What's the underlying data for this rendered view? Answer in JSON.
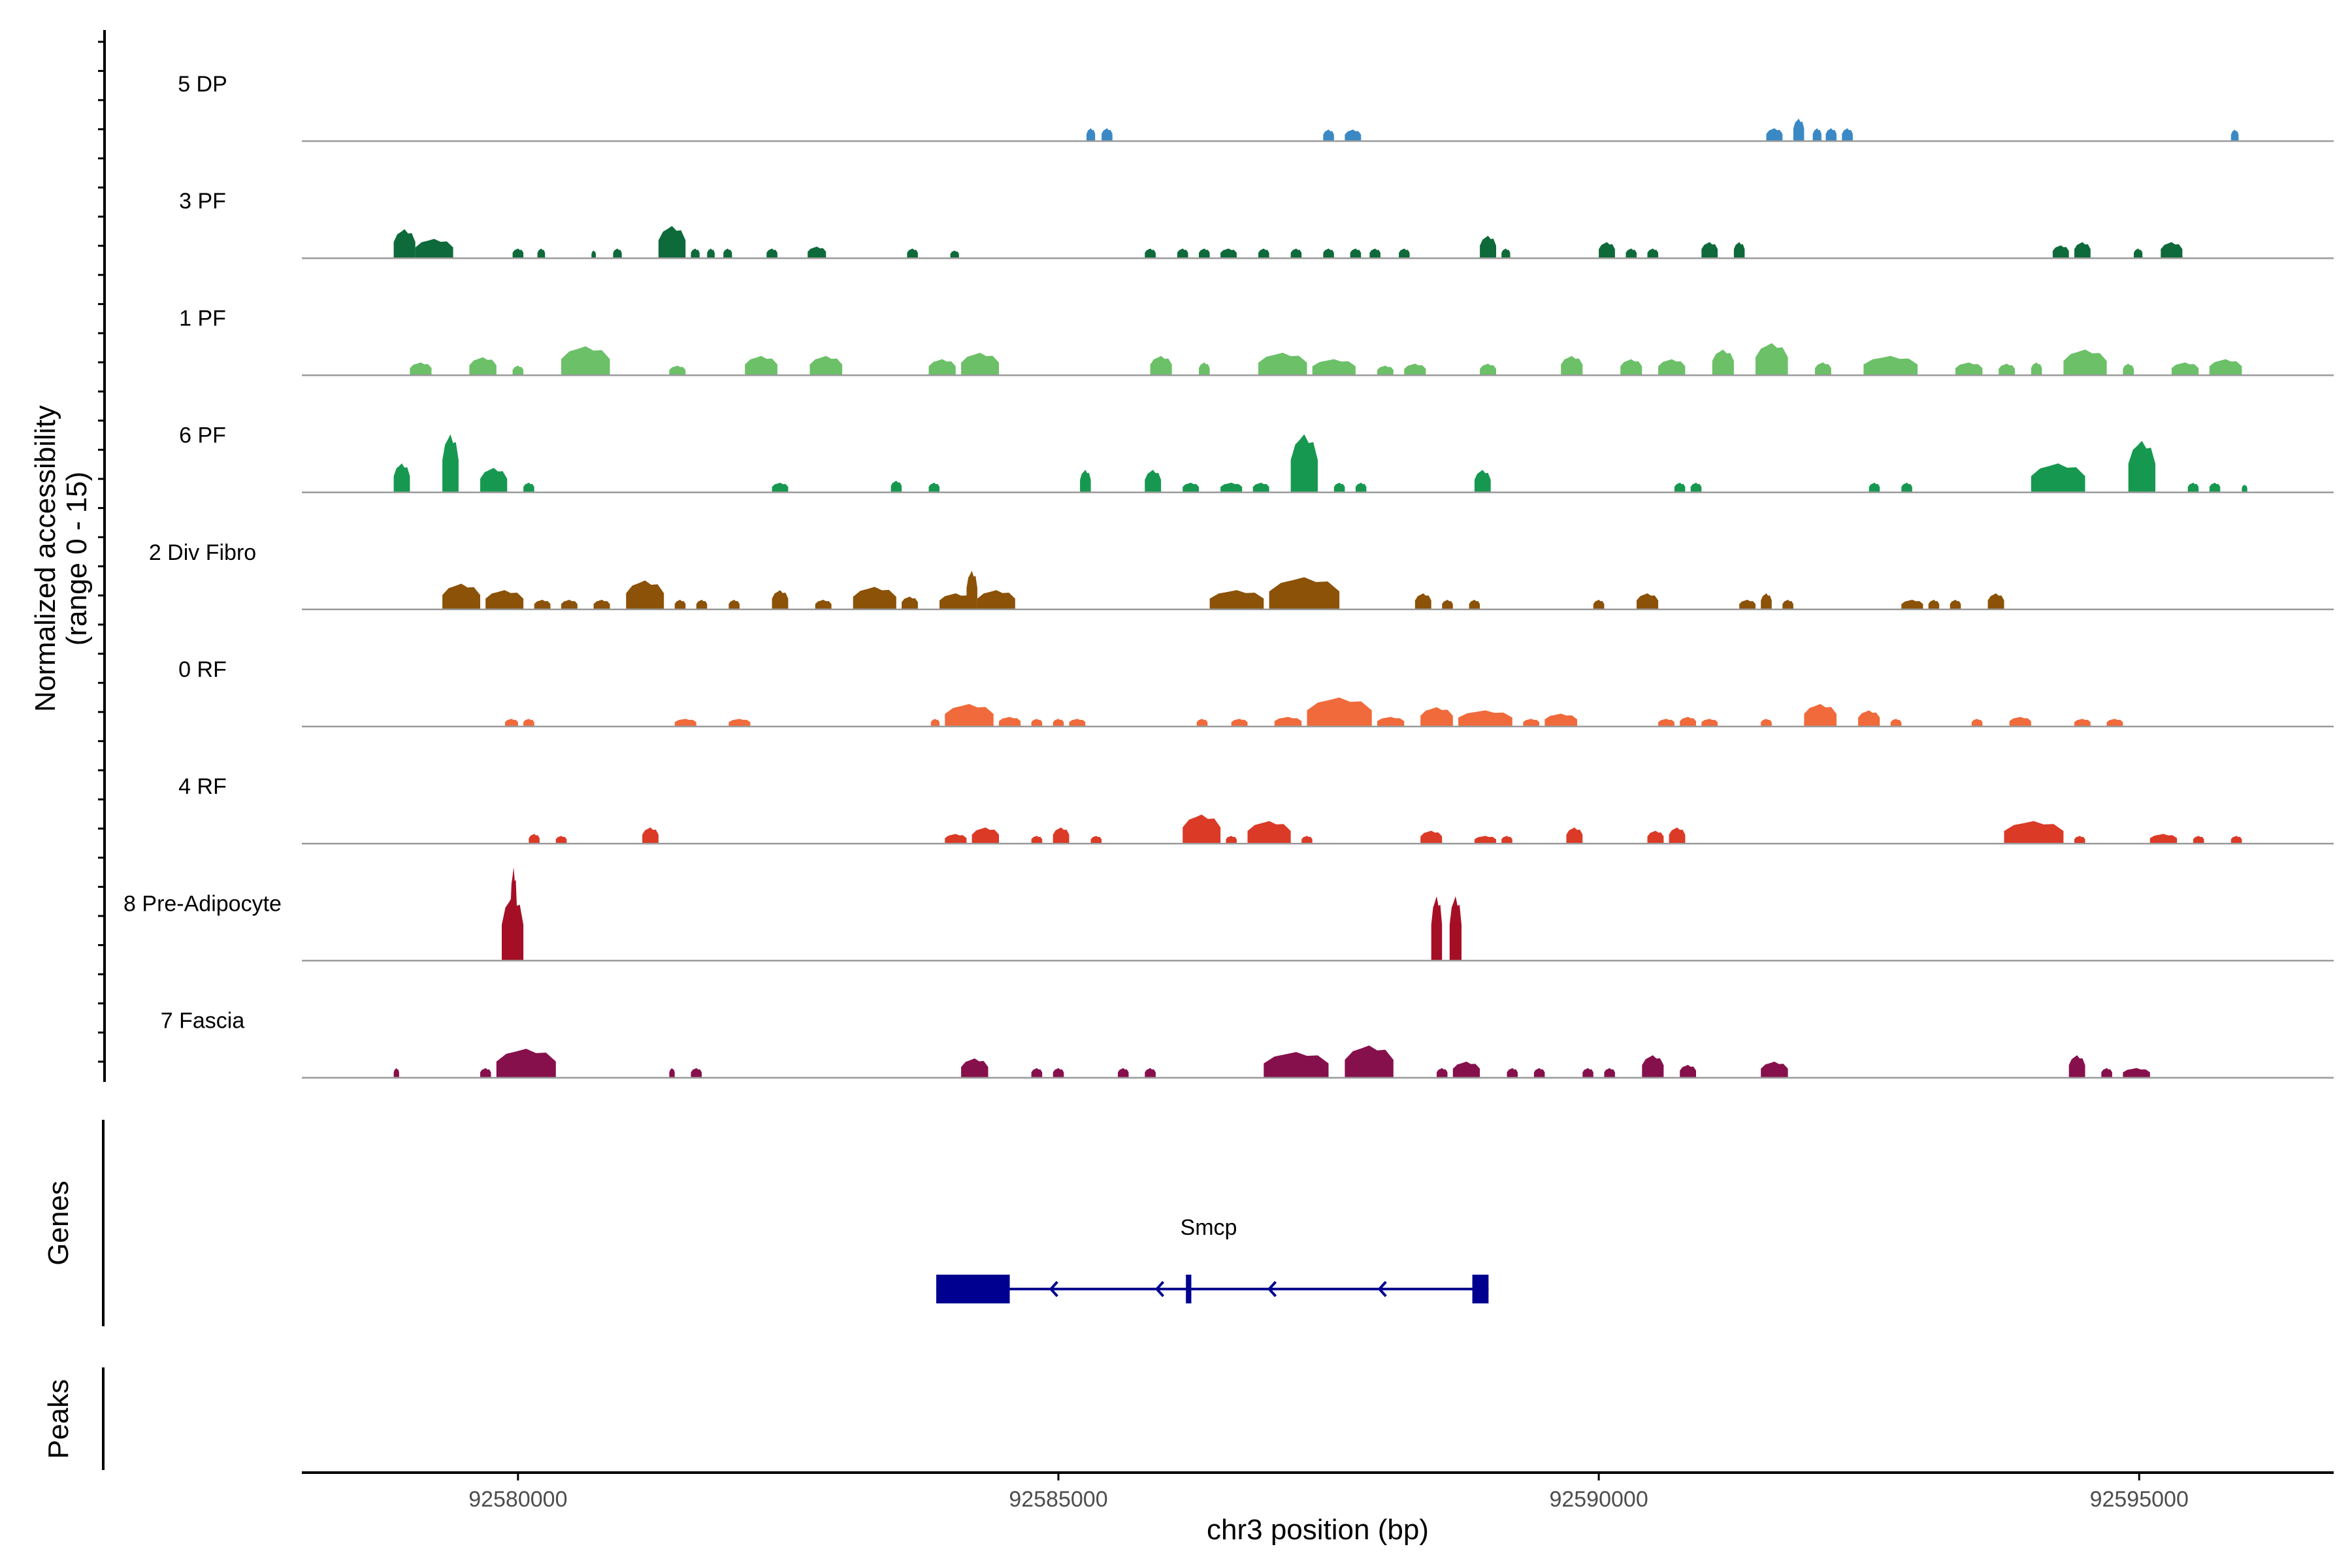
{
  "chart_data": {
    "type": "area",
    "title": "",
    "ylabel": "Normalized accessibility",
    "ylabel_range": "(range 0 - 15)",
    "xlabel": "chr3 position (bp)",
    "xlim": [
      92578000,
      92596800
    ],
    "ylim": [
      0,
      15
    ],
    "x_ticks": [
      92580000,
      92585000,
      92590000,
      92595000
    ],
    "x_tick_labels": [
      "92580000",
      "92585000",
      "92590000",
      "92595000"
    ],
    "genes_label": "Genes",
    "peaks_label": "Peaks",
    "series": [
      {
        "name": "5 DP",
        "color": "#3A89C5",
        "peaks": [
          [
            92585260,
            92585340,
            2.0
          ],
          [
            92585400,
            92585500,
            2.0
          ],
          [
            92587450,
            92587550,
            1.8
          ],
          [
            92587650,
            92587800,
            1.8
          ],
          [
            92591550,
            92591700,
            2.0
          ],
          [
            92591800,
            92591900,
            3.5
          ],
          [
            92591980,
            92592060,
            2.0
          ],
          [
            92592100,
            92592200,
            2.0
          ],
          [
            92592250,
            92592350,
            2.0
          ],
          [
            92595850,
            92595920,
            1.8
          ]
        ]
      },
      {
        "name": "3 PF",
        "color": "#0E6A3A",
        "peaks": [
          [
            92578850,
            92579050,
            4.5
          ],
          [
            92579050,
            92579400,
            3.0
          ],
          [
            92579950,
            92580050,
            1.5
          ],
          [
            92580180,
            92580250,
            1.5
          ],
          [
            92580680,
            92580720,
            1.2
          ],
          [
            92580880,
            92580960,
            1.5
          ],
          [
            92581300,
            92581550,
            5.0
          ],
          [
            92581600,
            92581680,
            1.5
          ],
          [
            92581750,
            92581820,
            1.5
          ],
          [
            92581900,
            92581980,
            1.5
          ],
          [
            92582300,
            92582400,
            1.5
          ],
          [
            92582680,
            92582850,
            1.8
          ],
          [
            92583600,
            92583700,
            1.5
          ],
          [
            92584000,
            92584080,
            1.2
          ],
          [
            92585800,
            92585900,
            1.5
          ],
          [
            92586100,
            92586200,
            1.5
          ],
          [
            92586300,
            92586400,
            1.5
          ],
          [
            92586500,
            92586650,
            1.5
          ],
          [
            92586850,
            92586950,
            1.5
          ],
          [
            92587150,
            92587250,
            1.5
          ],
          [
            92587450,
            92587550,
            1.5
          ],
          [
            92587700,
            92587800,
            1.5
          ],
          [
            92587880,
            92587980,
            1.5
          ],
          [
            92588150,
            92588250,
            1.5
          ],
          [
            92588900,
            92589050,
            3.5
          ],
          [
            92589100,
            92589180,
            1.5
          ],
          [
            92590000,
            92590150,
            2.5
          ],
          [
            92590250,
            92590350,
            1.5
          ],
          [
            92590450,
            92590550,
            1.5
          ],
          [
            92590950,
            92591100,
            2.5
          ],
          [
            92591250,
            92591350,
            2.5
          ],
          [
            92594200,
            92594350,
            2.0
          ],
          [
            92594400,
            92594550,
            2.5
          ],
          [
            92594950,
            92595030,
            1.5
          ],
          [
            92595200,
            92595400,
            2.5
          ]
        ]
      },
      {
        "name": "1 PF",
        "color": "#6CC068",
        "peaks": [
          [
            92579000,
            92579200,
            2.0
          ],
          [
            92579550,
            92579800,
            2.8
          ],
          [
            92579950,
            92580050,
            1.5
          ],
          [
            92580400,
            92580850,
            4.5
          ],
          [
            92581400,
            92581550,
            1.5
          ],
          [
            92582100,
            92582400,
            3.0
          ],
          [
            92582700,
            92583000,
            3.0
          ],
          [
            92583800,
            92584050,
            2.5
          ],
          [
            92584100,
            92584450,
            3.5
          ],
          [
            92585850,
            92586050,
            3.0
          ],
          [
            92586300,
            92586400,
            2.0
          ],
          [
            92586850,
            92587300,
            3.5
          ],
          [
            92587350,
            92587750,
            2.5
          ],
          [
            92587950,
            92588100,
            1.5
          ],
          [
            92588200,
            92588400,
            1.8
          ],
          [
            92588900,
            92589050,
            1.8
          ],
          [
            92589650,
            92589850,
            3.0
          ],
          [
            92590200,
            92590400,
            2.5
          ],
          [
            92590550,
            92590800,
            2.5
          ],
          [
            92591050,
            92591250,
            4.0
          ],
          [
            92591450,
            92591750,
            5.0
          ],
          [
            92592000,
            92592150,
            2.0
          ],
          [
            92592450,
            92592950,
            3.0
          ],
          [
            92593300,
            92593550,
            2.0
          ],
          [
            92593700,
            92593850,
            1.8
          ],
          [
            92594000,
            92594100,
            2.0
          ],
          [
            92594300,
            92594700,
            4.0
          ],
          [
            92594850,
            92594950,
            1.8
          ],
          [
            92595300,
            92595550,
            2.0
          ],
          [
            92595650,
            92595950,
            2.5
          ]
        ]
      },
      {
        "name": "6 PF",
        "color": "#179850",
        "peaks": [
          [
            92578850,
            92579000,
            4.5
          ],
          [
            92579300,
            92579450,
            9.0
          ],
          [
            92579650,
            92579900,
            3.8
          ],
          [
            92580050,
            92580150,
            1.5
          ],
          [
            92582350,
            92582500,
            1.5
          ],
          [
            92583450,
            92583550,
            1.8
          ],
          [
            92583800,
            92583900,
            1.5
          ],
          [
            92585200,
            92585300,
            3.5
          ],
          [
            92585800,
            92585950,
            3.5
          ],
          [
            92586150,
            92586300,
            1.5
          ],
          [
            92586500,
            92586700,
            1.5
          ],
          [
            92586800,
            92586950,
            1.5
          ],
          [
            92587150,
            92587400,
            9.0
          ],
          [
            92587550,
            92587650,
            1.5
          ],
          [
            92587750,
            92587850,
            1.5
          ],
          [
            92588850,
            92589000,
            3.5
          ],
          [
            92590700,
            92590800,
            1.5
          ],
          [
            92590850,
            92590950,
            1.5
          ],
          [
            92592500,
            92592600,
            1.5
          ],
          [
            92592800,
            92592900,
            1.5
          ],
          [
            92594000,
            92594500,
            4.5
          ],
          [
            92594900,
            92595150,
            8.0
          ],
          [
            92595450,
            92595550,
            1.5
          ],
          [
            92595650,
            92595750,
            1.5
          ],
          [
            92595950,
            92596000,
            1.2
          ]
        ]
      },
      {
        "name": "2 Div Fibro",
        "color": "#8B5208",
        "peaks": [
          [
            92579300,
            92579650,
            4.0
          ],
          [
            92579700,
            92580050,
            3.0
          ],
          [
            92580150,
            92580300,
            1.5
          ],
          [
            92580400,
            92580550,
            1.5
          ],
          [
            92580700,
            92580850,
            1.5
          ],
          [
            92581000,
            92581350,
            4.5
          ],
          [
            92581450,
            92581550,
            1.5
          ],
          [
            92581650,
            92581750,
            1.5
          ],
          [
            92581950,
            92582050,
            1.5
          ],
          [
            92582350,
            92582500,
            3.0
          ],
          [
            92582750,
            92582900,
            1.5
          ],
          [
            92583100,
            92583500,
            3.5
          ],
          [
            92583550,
            92583700,
            2.0
          ],
          [
            92583900,
            92584200,
            2.5
          ],
          [
            92584150,
            92584250,
            6.0
          ],
          [
            92584250,
            92584600,
            3.0
          ],
          [
            92586400,
            92586900,
            3.0
          ],
          [
            92586950,
            92587600,
            5.0
          ],
          [
            92588300,
            92588450,
            2.5
          ],
          [
            92588550,
            92588650,
            1.5
          ],
          [
            92588800,
            92588900,
            1.5
          ],
          [
            92589950,
            92590050,
            1.5
          ],
          [
            92590350,
            92590550,
            2.5
          ],
          [
            92591300,
            92591450,
            1.5
          ],
          [
            92591500,
            92591600,
            2.5
          ],
          [
            92591700,
            92591800,
            1.5
          ],
          [
            92592800,
            92593000,
            1.5
          ],
          [
            92593050,
            92593150,
            1.5
          ],
          [
            92593250,
            92593350,
            1.5
          ],
          [
            92593600,
            92593750,
            2.5
          ]
        ]
      },
      {
        "name": "0 RF",
        "color": "#F06A3C",
        "peaks": [
          [
            92579880,
            92580000,
            1.2
          ],
          [
            92580050,
            92580150,
            1.2
          ],
          [
            92581450,
            92581650,
            1.2
          ],
          [
            92581950,
            92582150,
            1.2
          ],
          [
            92583820,
            92583900,
            1.2
          ],
          [
            92583950,
            92584400,
            3.5
          ],
          [
            92584450,
            92584650,
            1.5
          ],
          [
            92584750,
            92584850,
            1.2
          ],
          [
            92584950,
            92585050,
            1.2
          ],
          [
            92585100,
            92585250,
            1.2
          ],
          [
            92586280,
            92586380,
            1.2
          ],
          [
            92586600,
            92586750,
            1.2
          ],
          [
            92587000,
            92587250,
            1.5
          ],
          [
            92587300,
            92587900,
            4.5
          ],
          [
            92587950,
            92588200,
            1.5
          ],
          [
            92588350,
            92588650,
            3.0
          ],
          [
            92588700,
            92589200,
            2.5
          ],
          [
            92589300,
            92589450,
            1.2
          ],
          [
            92589500,
            92589800,
            2.0
          ],
          [
            92590550,
            92590700,
            1.2
          ],
          [
            92590750,
            92590900,
            1.5
          ],
          [
            92590950,
            92591100,
            1.2
          ],
          [
            92591500,
            92591600,
            1.2
          ],
          [
            92591900,
            92592200,
            3.5
          ],
          [
            92592400,
            92592600,
            2.5
          ],
          [
            92592700,
            92592800,
            1.2
          ],
          [
            92593450,
            92593550,
            1.2
          ],
          [
            92593800,
            92594000,
            1.5
          ],
          [
            92594400,
            92594550,
            1.2
          ],
          [
            92594700,
            92594850,
            1.2
          ]
        ]
      },
      {
        "name": "4 RF",
        "color": "#DB3A27",
        "peaks": [
          [
            92580100,
            92580200,
            1.5
          ],
          [
            92580350,
            92580450,
            1.2
          ],
          [
            92581150,
            92581300,
            2.5
          ],
          [
            92583950,
            92584150,
            1.5
          ],
          [
            92584200,
            92584450,
            2.5
          ],
          [
            92584750,
            92584850,
            1.2
          ],
          [
            92584950,
            92585100,
            2.5
          ],
          [
            92585300,
            92585400,
            1.2
          ],
          [
            92586150,
            92586500,
            4.5
          ],
          [
            92586550,
            92586650,
            1.2
          ],
          [
            92586750,
            92587150,
            3.5
          ],
          [
            92587250,
            92587350,
            1.2
          ],
          [
            92588350,
            92588550,
            2.0
          ],
          [
            92588850,
            92589050,
            1.2
          ],
          [
            92589100,
            92589200,
            1.2
          ],
          [
            92589700,
            92589850,
            2.5
          ],
          [
            92590450,
            92590600,
            2.0
          ],
          [
            92590650,
            92590800,
            2.5
          ],
          [
            92593750,
            92594300,
            3.5
          ],
          [
            92594400,
            92594500,
            1.2
          ],
          [
            92595100,
            92595350,
            1.5
          ],
          [
            92595500,
            92595600,
            1.2
          ],
          [
            92595850,
            92595950,
            1.2
          ]
        ]
      },
      {
        "name": "8 Pre-Adipocyte",
        "color": "#A50F26",
        "peaks": [
          [
            92579850,
            92580050,
            10.0
          ],
          [
            92579930,
            92579990,
            14.5
          ],
          [
            92588450,
            92588550,
            10.0
          ],
          [
            92588620,
            92588730,
            10.0
          ]
        ]
      },
      {
        "name": "7 Fascia",
        "color": "#86104C",
        "peaks": [
          [
            92578850,
            92578900,
            1.5
          ],
          [
            92579650,
            92579750,
            1.5
          ],
          [
            92579800,
            92580350,
            4.5
          ],
          [
            92581400,
            92581450,
            1.5
          ],
          [
            92581600,
            92581700,
            1.5
          ],
          [
            92584100,
            92584350,
            3.0
          ],
          [
            92584750,
            92584850,
            1.5
          ],
          [
            92584950,
            92585050,
            1.5
          ],
          [
            92585550,
            92585650,
            1.5
          ],
          [
            92585800,
            92585900,
            1.5
          ],
          [
            92586900,
            92587500,
            4.0
          ],
          [
            92587650,
            92588100,
            5.0
          ],
          [
            92588500,
            92588600,
            1.5
          ],
          [
            92588650,
            92588900,
            2.5
          ],
          [
            92589150,
            92589250,
            1.5
          ],
          [
            92589400,
            92589500,
            1.5
          ],
          [
            92589850,
            92589950,
            1.5
          ],
          [
            92590050,
            92590150,
            1.5
          ],
          [
            92590400,
            92590600,
            3.5
          ],
          [
            92590750,
            92590900,
            2.0
          ],
          [
            92591500,
            92591750,
            2.5
          ],
          [
            92594350,
            92594500,
            3.5
          ],
          [
            92594650,
            92594750,
            1.5
          ],
          [
            92594850,
            92595100,
            1.5
          ]
        ]
      }
    ],
    "gene": {
      "name": "Smcp",
      "color": "#000090",
      "strand": "-",
      "start": 92583870,
      "end": 92588980,
      "exons": [
        [
          92583870,
          92584550
        ],
        [
          92586180,
          92586230
        ],
        [
          92588830,
          92588980
        ]
      ],
      "arrow_positions": [
        92584930,
        92585910,
        92586950,
        92587970
      ]
    },
    "peaks_track": []
  }
}
